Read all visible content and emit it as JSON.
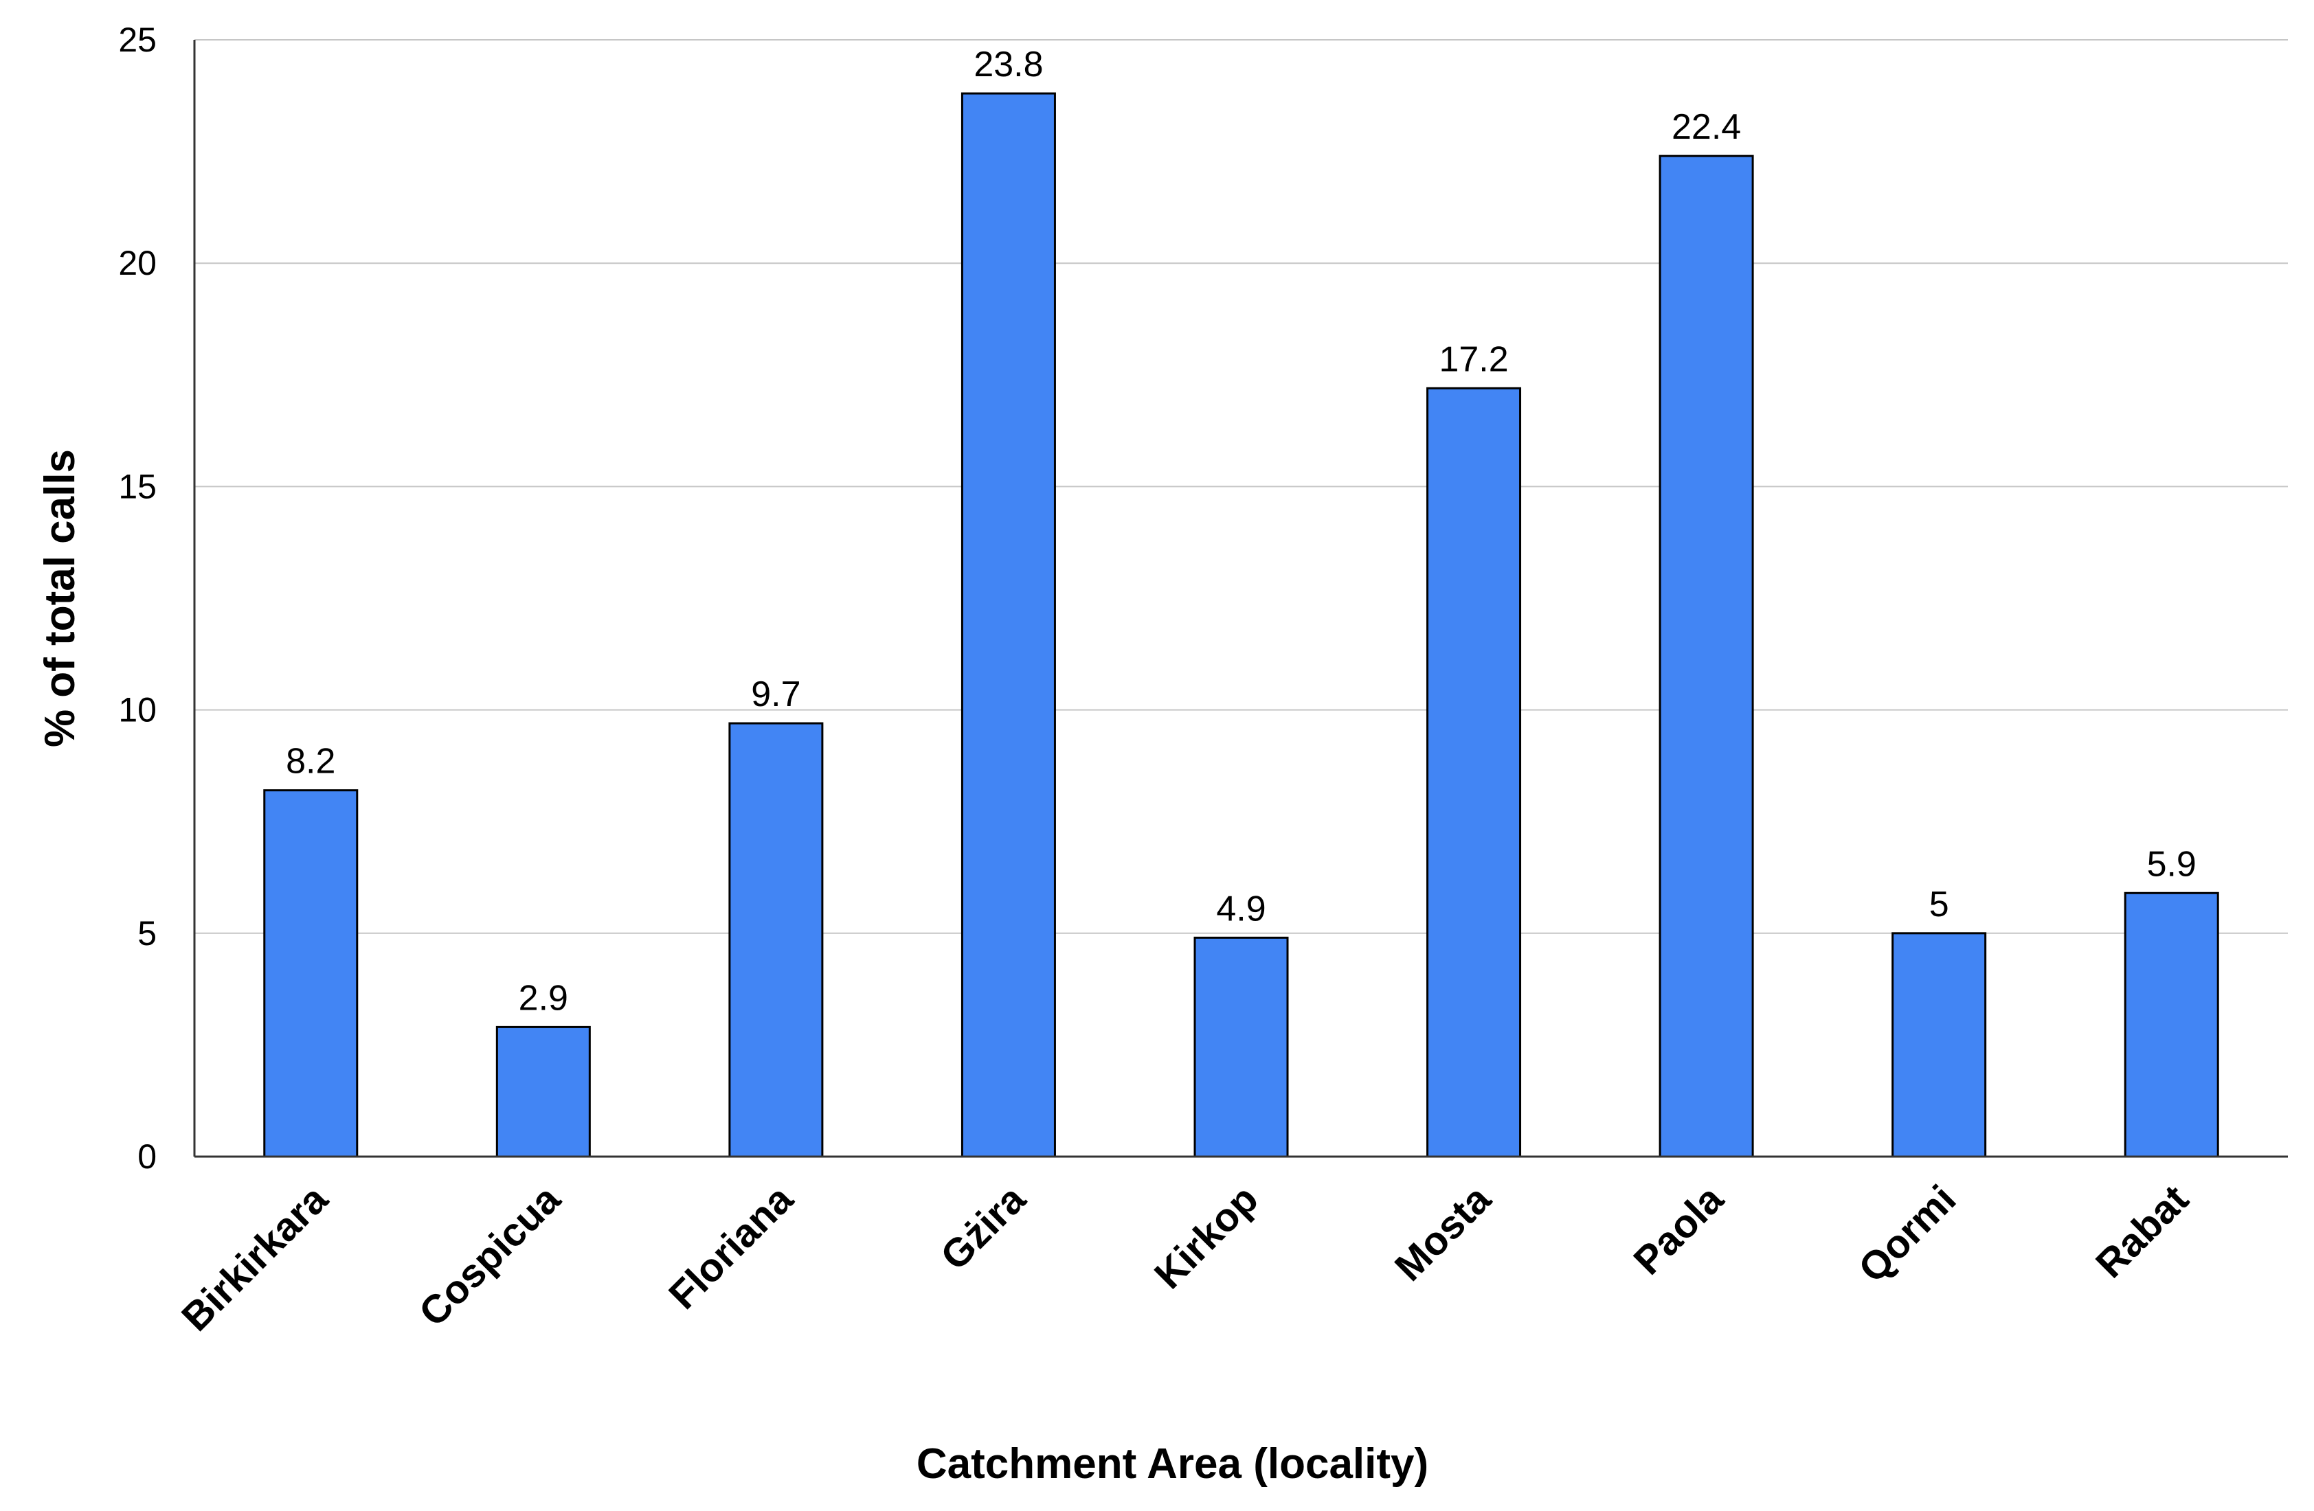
{
  "chart_data": {
    "type": "bar",
    "categories": [
      "Birkirkara",
      "Cospicua",
      "Floriana",
      "Gżira",
      "Kirkop",
      "Mosta",
      "Paola",
      "Qormi",
      "Rabat"
    ],
    "values": [
      8.2,
      2.9,
      9.7,
      23.8,
      4.9,
      17.2,
      22.4,
      5,
      5.9
    ],
    "data_labels": [
      "8.2",
      "2.9",
      "9.7",
      "23.8",
      "4.9",
      "17.2",
      "22.4",
      "5",
      "5.9"
    ],
    "xlabel": "Catchment Area (locality)",
    "ylabel": "% of total calls",
    "ylim": [
      0,
      25
    ],
    "yticks": [
      0,
      5,
      10,
      15,
      20,
      25
    ],
    "grid": true,
    "legend": "none",
    "bar_color": "#4285f4"
  }
}
